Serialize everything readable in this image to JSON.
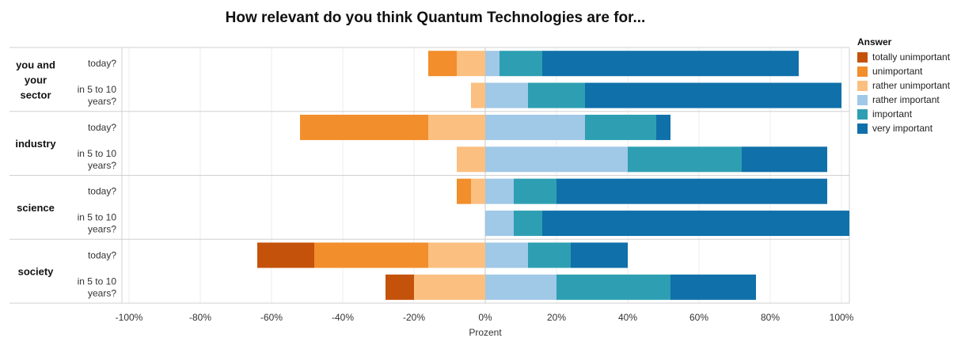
{
  "chart_data": {
    "type": "bar",
    "title": "How relevant do you think Quantum Technologies are for...",
    "xlabel": "Prozent",
    "ylabel": "",
    "xlim": [
      -100,
      100
    ],
    "xticks": [
      -100,
      -80,
      -60,
      -40,
      -20,
      0,
      20,
      40,
      60,
      80,
      100
    ],
    "xtick_labels": [
      "-100%",
      "-80%",
      "-60%",
      "-40%",
      "-20%",
      "0%",
      "20%",
      "40%",
      "60%",
      "80%",
      "100%"
    ],
    "grid": true,
    "legend_position": "right",
    "legend_title": "Answer",
    "series": [
      {
        "name": "totally unimportant",
        "color": "#c4520a"
      },
      {
        "name": "unimportant",
        "color": "#f28e2b"
      },
      {
        "name": "rather unimportant",
        "color": "#fbbf80"
      },
      {
        "name": "rather important",
        "color": "#a0c8e7"
      },
      {
        "name": "important",
        "color": "#2e9fb2"
      },
      {
        "name": "very important",
        "color": "#1070aa"
      }
    ],
    "groups": [
      {
        "label": "you and your sector",
        "rows": [
          {
            "label": "today?",
            "values": [
              0,
              -8,
              -8,
              4,
              12,
              72
            ]
          },
          {
            "label": "in 5 to 10 years?",
            "values": [
              0,
              0,
              -4,
              12,
              16,
              72
            ]
          }
        ]
      },
      {
        "label": "industry",
        "rows": [
          {
            "label": "today?",
            "values": [
              0,
              -36,
              -16,
              28,
              20,
              4
            ]
          },
          {
            "label": "in 5 to 10 years?",
            "values": [
              0,
              0,
              -8,
              40,
              32,
              24
            ]
          }
        ]
      },
      {
        "label": "science",
        "rows": [
          {
            "label": "today?",
            "values": [
              0,
              -4,
              -4,
              8,
              12,
              76
            ]
          },
          {
            "label": "in 5 to 10 years?",
            "values": [
              0,
              0,
              0,
              8,
              8,
              88
            ]
          }
        ]
      },
      {
        "label": "society",
        "rows": [
          {
            "label": "today?",
            "values": [
              -16,
              -32,
              -16,
              12,
              12,
              16
            ]
          },
          {
            "label": "in 5 to 10 years?",
            "values": [
              -8,
              0,
              -20,
              20,
              32,
              24
            ]
          }
        ]
      }
    ]
  }
}
